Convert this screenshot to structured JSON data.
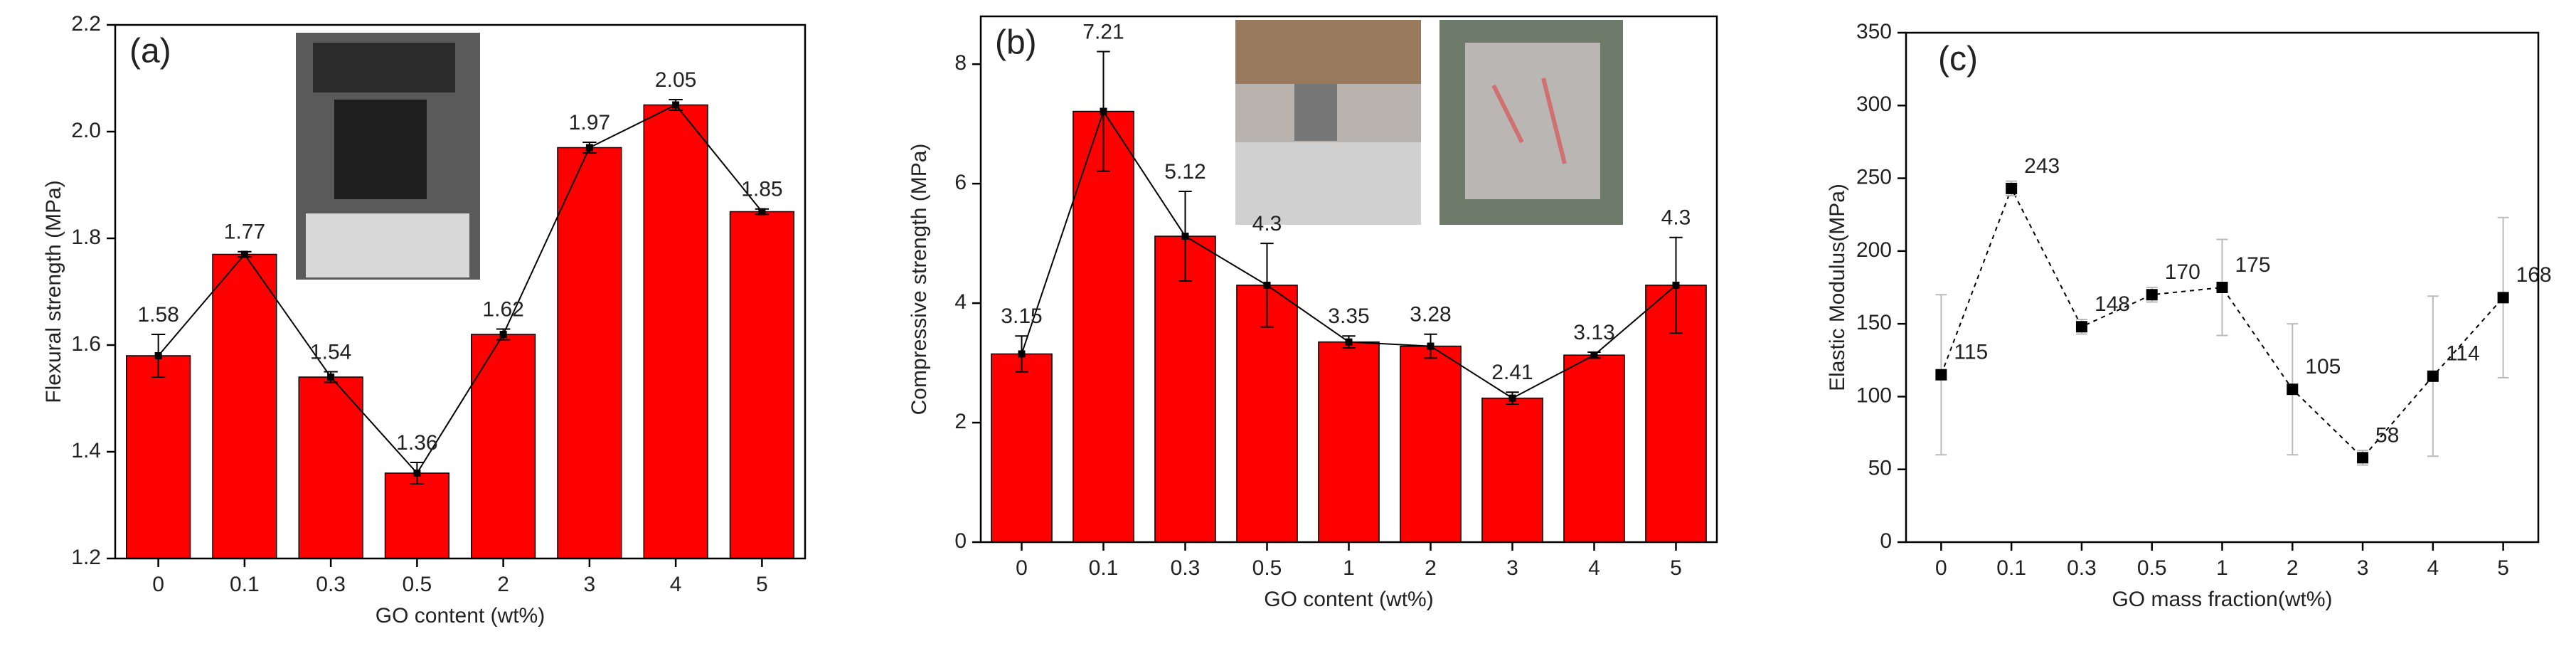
{
  "chart_data": [
    {
      "type": "bar",
      "panel_label": "(a)",
      "y_label": "Flexural strength (MPa)",
      "x_label": "GO content (wt%)",
      "categories": [
        "0",
        "0.1",
        "0.3",
        "0.5",
        "2",
        "3",
        "4",
        "5"
      ],
      "values": [
        1.58,
        1.77,
        1.54,
        1.36,
        1.62,
        1.97,
        2.05,
        1.85
      ],
      "errors": [
        0.04,
        0.005,
        0.01,
        0.02,
        0.01,
        0.01,
        0.01,
        0.005
      ],
      "color": "#ff0000",
      "connect_line": true,
      "ylim": [
        1.2,
        2.2
      ],
      "yticks": [
        1.2,
        1.4,
        1.6,
        1.8,
        {
          "value": 2,
          "label": "2.0"
        },
        2.2
      ]
    },
    {
      "type": "bar",
      "panel_label": "(b)",
      "y_label": "Compressive strength (MPa)",
      "x_label": "GO content (wt%)",
      "categories": [
        "0",
        "0.1",
        "0.3",
        "0.5",
        "1",
        "2",
        "3",
        "4",
        "5"
      ],
      "values": [
        3.15,
        7.21,
        5.12,
        4.3,
        3.35,
        3.28,
        2.41,
        3.13,
        4.3
      ],
      "errors": [
        0.3,
        1.0,
        0.75,
        0.7,
        0.1,
        0.2,
        0.1,
        0.05,
        0.8
      ],
      "color": "#ff0000",
      "connect_line": true,
      "ylim": [
        0,
        8.8
      ],
      "yticks": [
        0,
        2,
        4,
        6,
        8
      ]
    },
    {
      "type": "line",
      "panel_label": "(c)",
      "y_label": "Elastic Modulus(MPa)",
      "x_label": "GO mass fraction(wt%)",
      "categories": [
        "0",
        "0.1",
        "0.3",
        "0.5",
        "1",
        "2",
        "3",
        "4",
        "5"
      ],
      "values": [
        115,
        243,
        148,
        170,
        175,
        105,
        58,
        114,
        168
      ],
      "errors": [
        55,
        5,
        5,
        5,
        33,
        45,
        5,
        55,
        55
      ],
      "color": "#000000",
      "ylim": [
        0,
        350
      ],
      "yticks": [
        0,
        50,
        100,
        150,
        200,
        250,
        300,
        350
      ]
    }
  ]
}
